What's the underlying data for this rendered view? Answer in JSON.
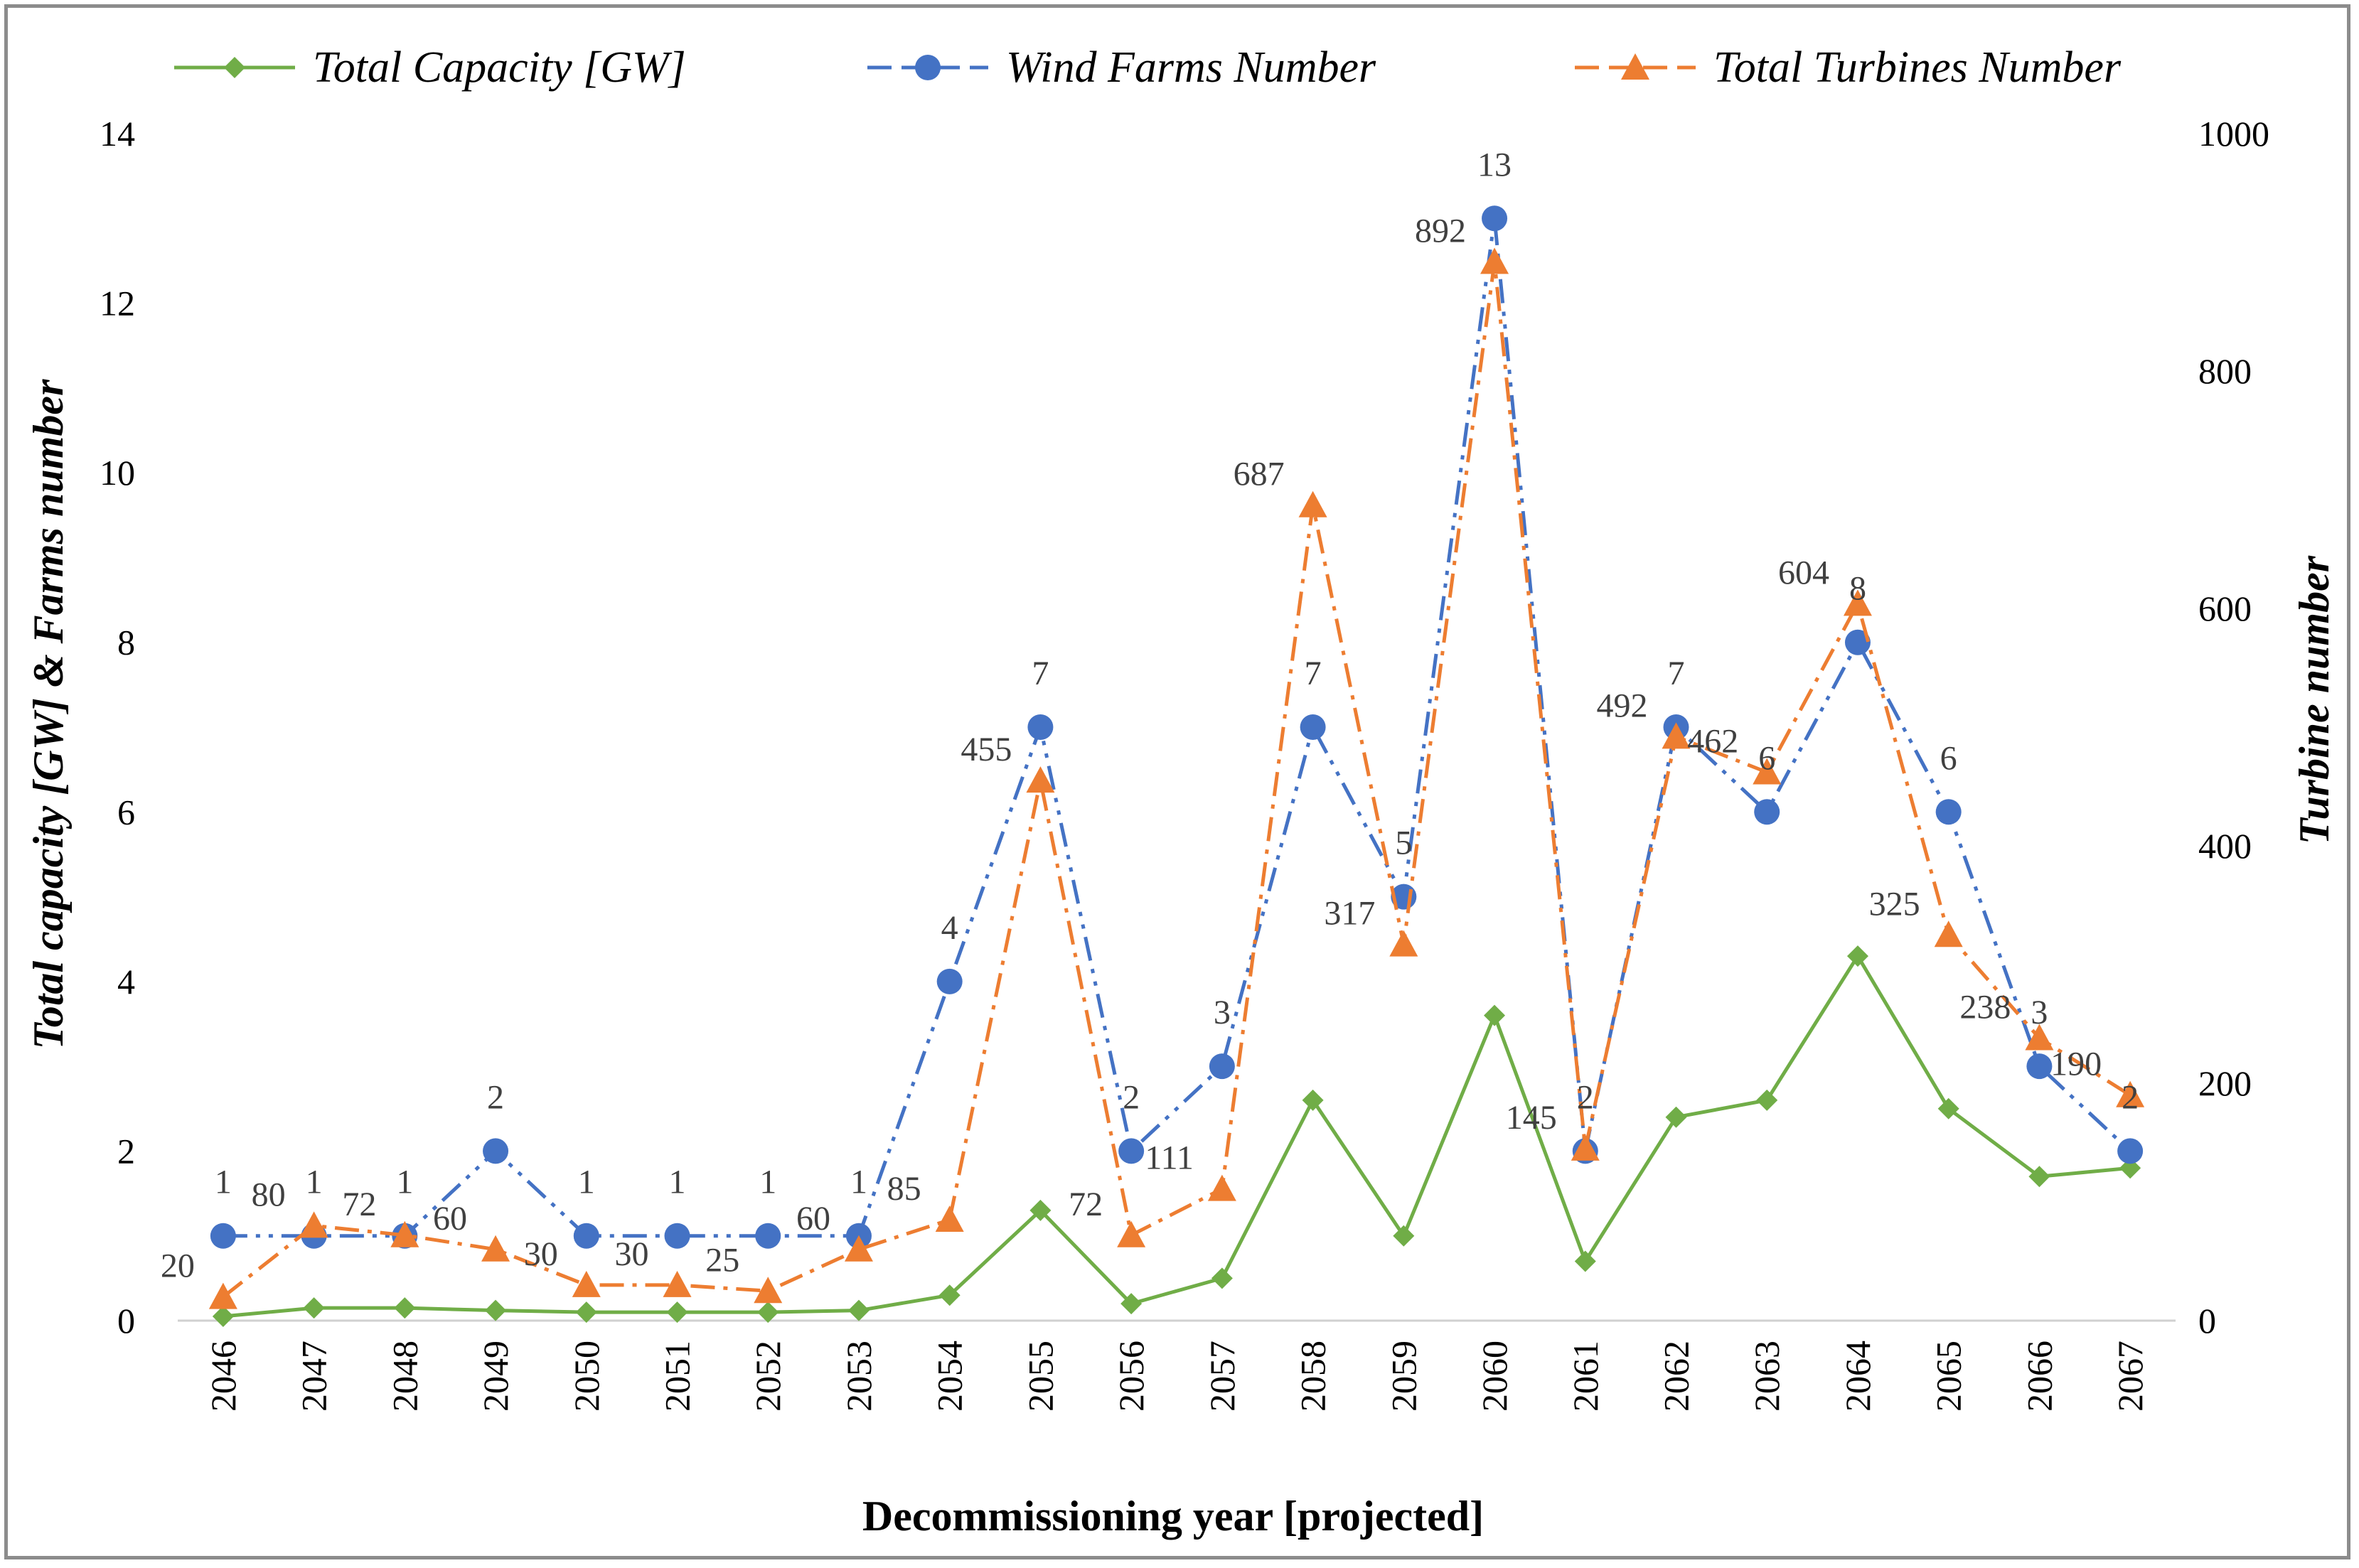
{
  "chart_data": {
    "type": "line",
    "categories": [
      "2046",
      "2047",
      "2048",
      "2049",
      "2050",
      "2051",
      "2052",
      "2053",
      "2054",
      "2055",
      "2056",
      "2057",
      "2058",
      "2059",
      "2060",
      "2061",
      "2062",
      "2063",
      "2064",
      "2065",
      "2066",
      "2067"
    ],
    "xlabel": "Decommissioning year [projected]",
    "ylabel_left": "Total capacity [GW] & Farms number",
    "ylabel_right": "Turbine number",
    "ylim_left": [
      0,
      14
    ],
    "ylim_right": [
      0,
      1000
    ],
    "yticks_left": [
      "0",
      "2",
      "4",
      "6",
      "8",
      "10",
      "12",
      "14"
    ],
    "yticks_right": [
      "0",
      "200",
      "400",
      "600",
      "800",
      "1000"
    ],
    "legend_position": "top",
    "series": [
      {
        "name": "Total Capacity [GW]",
        "axis": "left",
        "color": "#70ad47",
        "marker": "diamond",
        "line": "solid",
        "values": [
          0.05,
          0.15,
          0.15,
          0.12,
          0.1,
          0.1,
          0.1,
          0.12,
          0.3,
          1.3,
          0.2,
          0.5,
          2.6,
          1.0,
          3.6,
          0.7,
          2.4,
          2.6,
          4.3,
          2.5,
          1.7,
          1.8
        ],
        "labels": []
      },
      {
        "name": "Wind Farms Number",
        "axis": "left",
        "color": "#4472c4",
        "marker": "circle",
        "line": "dash-dot-dot",
        "values": [
          1,
          1,
          1,
          2,
          1,
          1,
          1,
          1,
          4,
          7,
          2,
          3,
          7,
          5,
          13,
          2,
          7,
          6,
          8,
          6,
          3,
          2
        ],
        "labels": [
          "1",
          "1",
          "1",
          "2",
          "1",
          "1",
          "1",
          "1",
          "4",
          "7",
          "2",
          "3",
          "7",
          "5",
          "13",
          "2",
          "7",
          "6",
          "8",
          "6",
          "3",
          "2"
        ]
      },
      {
        "name": "Total Turbines Number",
        "axis": "right",
        "color": "#ed7d31",
        "marker": "triangle",
        "line": "dash-dot",
        "values": [
          20,
          80,
          72,
          60,
          30,
          30,
          25,
          60,
          85,
          455,
          72,
          111,
          687,
          317,
          892,
          145,
          492,
          462,
          604,
          325,
          238,
          190
        ],
        "labels": [
          "20",
          "80",
          "72",
          "60",
          "30",
          "30",
          "25",
          "60",
          "85",
          "455",
          "72",
          "111",
          "687",
          "317",
          "892",
          "145",
          "492",
          "462",
          "604",
          "325",
          "238",
          "190"
        ]
      }
    ]
  }
}
